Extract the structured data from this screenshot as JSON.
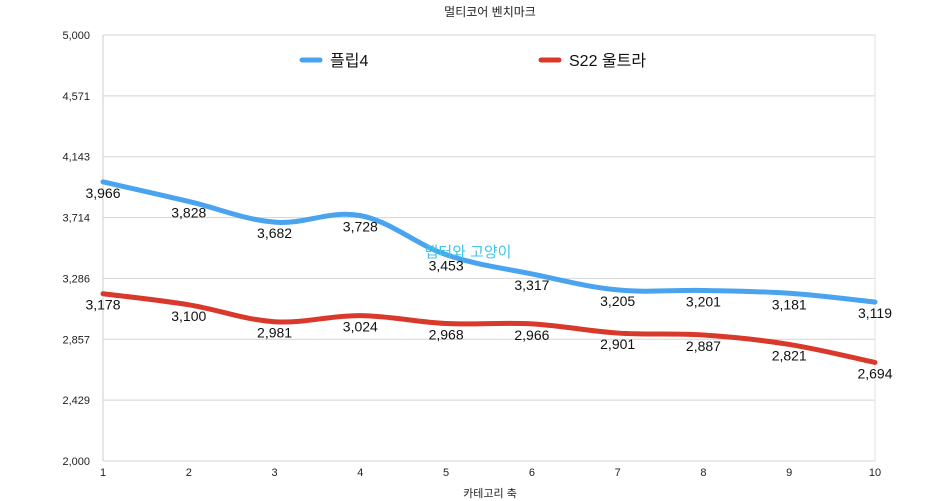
{
  "chart_data": {
    "type": "line",
    "title": "멀티코어 벤치마크",
    "xlabel": "카테고리 축",
    "ylabel": "",
    "x": [
      1,
      2,
      3,
      4,
      5,
      6,
      7,
      8,
      9,
      10
    ],
    "ylim": [
      2000,
      5000
    ],
    "yticks": [
      "2,000",
      "2,429",
      "2,857",
      "3,286",
      "3,714",
      "4,143",
      "4,571",
      "5,000"
    ],
    "grid": true,
    "legend_position": "top",
    "series": [
      {
        "name": "플립4",
        "color": "#4aa3ef",
        "values": [
          3966,
          3828,
          3682,
          3728,
          3453,
          3317,
          3205,
          3201,
          3181,
          3119
        ],
        "labels": [
          "3,966",
          "3,828",
          "3,682",
          "3,728",
          "3,453",
          "3,317",
          "3,205",
          "3,201",
          "3,181",
          "3,119"
        ]
      },
      {
        "name": "S22 울트라",
        "color": "#d9392b",
        "values": [
          3178,
          3100,
          2981,
          3024,
          2968,
          2966,
          2901,
          2887,
          2821,
          2694
        ],
        "labels": [
          "3,178",
          "3,100",
          "2,981",
          "3,024",
          "2,968",
          "2,966",
          "2,901",
          "2,887",
          "2,821",
          "2,694"
        ]
      }
    ],
    "watermark": "랩터와 고양이"
  }
}
